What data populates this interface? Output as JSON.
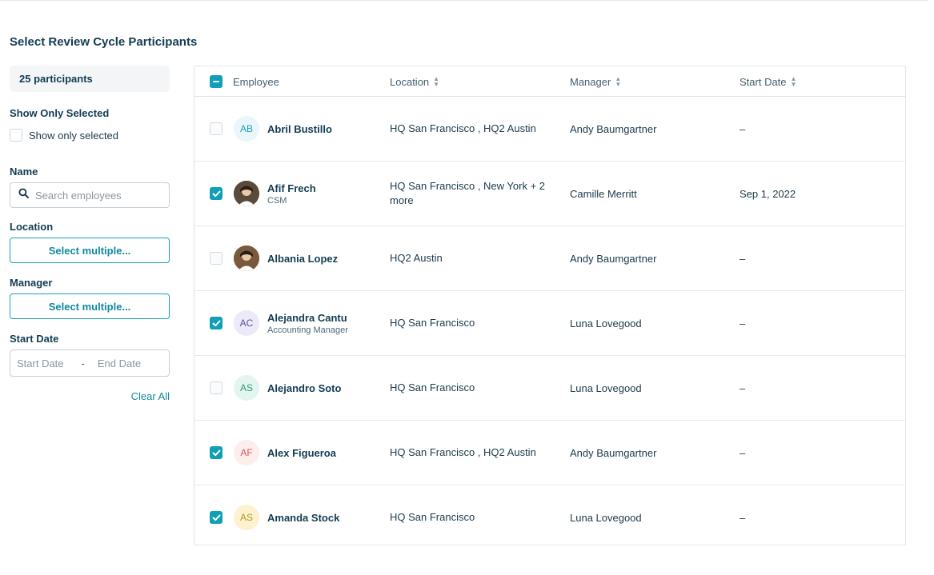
{
  "page": {
    "title": "Select Review Cycle Participants"
  },
  "sidebar": {
    "participants": "25 participants",
    "show_only_label": "Show Only Selected",
    "show_only_checkbox": "Show only selected",
    "name_label": "Name",
    "search_placeholder": "Search employees",
    "location_label": "Location",
    "location_button": "Select multiple...",
    "manager_label": "Manager",
    "manager_button": "Select multiple...",
    "start_date_label": "Start Date",
    "start_placeholder": "Start Date",
    "date_separator": "-",
    "end_placeholder": "End Date",
    "clear_all": "Clear All"
  },
  "table": {
    "headers": {
      "employee": "Employee",
      "location": "Location",
      "manager": "Manager",
      "start_date": "Start Date"
    },
    "rows": [
      {
        "initials": "AB",
        "avatar_type": "initials",
        "avatar_bg": "#eaf6f9",
        "avatar_fg": "#1ba3b8",
        "name": "Abril Bustillo",
        "role": "",
        "location": "HQ San Francisco , HQ2 Austin",
        "manager": "Andy Baumgartner",
        "start_date": "–",
        "selected": false
      },
      {
        "initials": "",
        "avatar_type": "photo",
        "avatar_bg": "#5a4a3c",
        "avatar_fg": "#ffffff",
        "name": "Afif Frech",
        "role": "CSM",
        "location": "HQ San Francisco , New York + 2 more",
        "manager": "Camille Merritt",
        "start_date": "Sep 1, 2022",
        "selected": true
      },
      {
        "initials": "",
        "avatar_type": "photo",
        "avatar_bg": "#7a5a3c",
        "avatar_fg": "#ffffff",
        "name": "Albania Lopez",
        "role": "",
        "location": "HQ2 Austin",
        "manager": "Andy Baumgartner",
        "start_date": "–",
        "selected": false
      },
      {
        "initials": "AC",
        "avatar_type": "initials",
        "avatar_bg": "#ece9f8",
        "avatar_fg": "#5e4fa2",
        "name": "Alejandra Cantu",
        "role": "Accounting Manager",
        "location": "HQ San Francisco",
        "manager": "Luna Lovegood",
        "start_date": "–",
        "selected": true
      },
      {
        "initials": "AS",
        "avatar_type": "initials",
        "avatar_bg": "#e3f5ef",
        "avatar_fg": "#2e9b77",
        "name": "Alejandro Soto",
        "role": "",
        "location": "HQ San Francisco",
        "manager": "Luna Lovegood",
        "start_date": "–",
        "selected": false
      },
      {
        "initials": "AF",
        "avatar_type": "initials",
        "avatar_bg": "#fdeeee",
        "avatar_fg": "#e0565b",
        "name": "Alex Figueroa",
        "role": "",
        "location": "HQ San Francisco , HQ2 Austin",
        "manager": "Andy Baumgartner",
        "start_date": "–",
        "selected": true
      },
      {
        "initials": "AS",
        "avatar_type": "initials",
        "avatar_bg": "#fdf2cf",
        "avatar_fg": "#b8961e",
        "name": "Amanda Stock",
        "role": "",
        "location": "HQ San Francisco",
        "manager": "Luna Lovegood",
        "start_date": "–",
        "selected": true
      }
    ]
  }
}
